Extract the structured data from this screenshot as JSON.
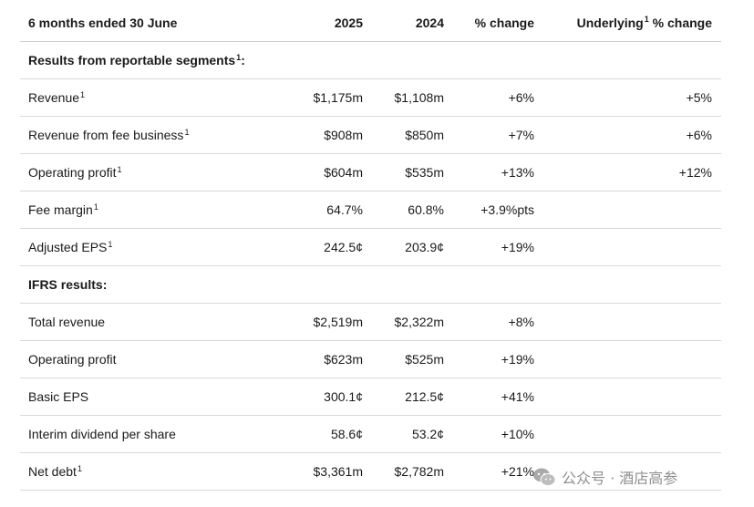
{
  "header": {
    "period": "6 months ended 30 June",
    "col_2025": "2025",
    "col_2024": "2024",
    "col_change": "% change",
    "col_underlying_pre": "Underlying",
    "col_underlying_sup": "1",
    "col_underlying_post": " % change"
  },
  "sections": {
    "segments_title": "Results from reportable segments",
    "segments_sup": "1",
    "segments_colon": ":",
    "ifrs_title": "IFRS results:"
  },
  "segment_rows": [
    {
      "label": "Revenue",
      "sup": "1",
      "y2025": "$1,175m",
      "y2024": "$1,108m",
      "change": "+6%",
      "underlying": "+5%"
    },
    {
      "label": "Revenue from fee business",
      "sup": "1",
      "y2025": "$908m",
      "y2024": "$850m",
      "change": "+7%",
      "underlying": "+6%"
    },
    {
      "label": "Operating profit",
      "sup": "1",
      "y2025": "$604m",
      "y2024": "$535m",
      "change": "+13%",
      "underlying": "+12%"
    },
    {
      "label": "Fee margin",
      "sup": "1",
      "y2025": "64.7%",
      "y2024": "60.8%",
      "change": "+3.9%pts",
      "underlying": ""
    },
    {
      "label": "Adjusted EPS",
      "sup": "1",
      "y2025": "242.5¢",
      "y2024": "203.9¢",
      "change": "+19%",
      "underlying": ""
    }
  ],
  "ifrs_rows": [
    {
      "label": "Total revenue",
      "sup": "",
      "y2025": "$2,519m",
      "y2024": "$2,322m",
      "change": "+8%",
      "underlying": ""
    },
    {
      "label": "Operating profit",
      "sup": "",
      "y2025": "$623m",
      "y2024": "$525m",
      "change": "+19%",
      "underlying": ""
    },
    {
      "label": "Basic EPS",
      "sup": "",
      "y2025": "300.1¢",
      "y2024": "212.5¢",
      "change": "+41%",
      "underlying": ""
    },
    {
      "label": "Interim dividend per share",
      "sup": "",
      "y2025": "58.6¢",
      "y2024": "53.2¢",
      "change": "+10%",
      "underlying": ""
    },
    {
      "label": "Net debt",
      "sup": "1",
      "y2025": "$3,361m",
      "y2024": "$2,782m",
      "change": "+21%",
      "underlying": ""
    }
  ],
  "watermark": {
    "text": "公众号 · 酒店高参",
    "icon": "wechat-icon",
    "color": "#8f8f8f"
  }
}
